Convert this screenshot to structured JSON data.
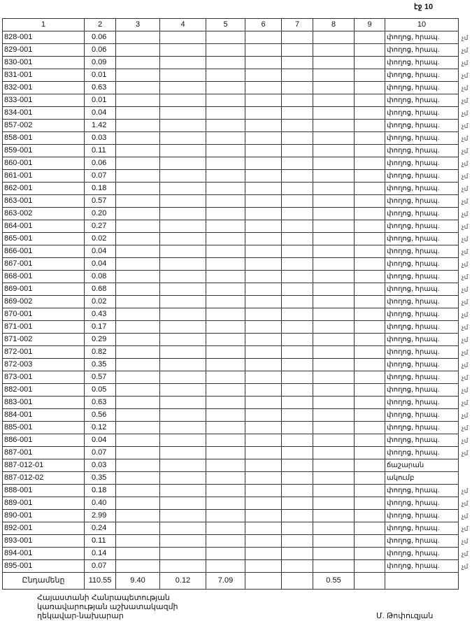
{
  "page_label": "էջ 10",
  "headers": [
    "1",
    "2",
    "3",
    "4",
    "5",
    "6",
    "7",
    "8",
    "9",
    "10"
  ],
  "side_mark": "չմ",
  "rows": [
    [
      "828-001",
      "0.06",
      "փողոց, հրապ."
    ],
    [
      "829-001",
      "0.06",
      "փողոց, հրապ."
    ],
    [
      "830-001",
      "0.09",
      "փողոց, հրապ."
    ],
    [
      "831-001",
      "0.01",
      "փողոց, հրապ."
    ],
    [
      "832-001",
      "0.63",
      "փողոց, հրապ."
    ],
    [
      "833-001",
      "0.01",
      "փողոց, հրապ."
    ],
    [
      "834-001",
      "0.04",
      "փողոց, հրապ."
    ],
    [
      "857-002",
      "1.42",
      "փողոց, հրապ."
    ],
    [
      "858-001",
      "0.03",
      "փողոց, հրապ."
    ],
    [
      "859-001",
      "0.11",
      "փողոց, հրապ."
    ],
    [
      "860-001",
      "0.06",
      "փողոց, հրապ."
    ],
    [
      "861-001",
      "0.07",
      "փողոց, հրապ."
    ],
    [
      "862-001",
      "0.18",
      "փողոց, հրապ."
    ],
    [
      "863-001",
      "0.57",
      "փողոց, հրապ."
    ],
    [
      "863-002",
      "0.20",
      "փողոց, հրապ."
    ],
    [
      "864-001",
      "0.27",
      "փողոց, հրապ."
    ],
    [
      "865-001",
      "0.02",
      "փողոց, հրապ."
    ],
    [
      "866-001",
      "0.04",
      "փողոց, հրապ."
    ],
    [
      "867-001",
      "0.04",
      "փողոց, հրապ."
    ],
    [
      "868-001",
      "0.08",
      "փողոց, հրապ."
    ],
    [
      "869-001",
      "0.68",
      "փողոց, հրապ."
    ],
    [
      "869-002",
      "0.02",
      "փողոց, հրապ."
    ],
    [
      "870-001",
      "0.43",
      "փողոց, հրապ."
    ],
    [
      "871-001",
      "0.17",
      "փողոց, հրապ."
    ],
    [
      "871-002",
      "0.29",
      "փողոց, հրապ."
    ],
    [
      "872-001",
      "0.82",
      "փողոց, հրապ."
    ],
    [
      "872-003",
      "0.35",
      "փողոց, հրապ."
    ],
    [
      "873-001",
      "0.57",
      "փողոց, հրապ."
    ],
    [
      "882-001",
      "0.05",
      "փողոց, հրապ."
    ],
    [
      "883-001",
      "0.63",
      "փողոց, հրապ."
    ],
    [
      "884-001",
      "0.56",
      "փողոց, հրապ."
    ],
    [
      "885-001",
      "0.12",
      "փողոց, հրապ."
    ],
    [
      "886-001",
      "0.04",
      "փողոց, հրապ."
    ],
    [
      "887-001",
      "0.07",
      "փողոց, հրապ."
    ],
    [
      "887-012-01",
      "0.03",
      "ճաշարան"
    ],
    [
      "887-012-02",
      "0.35",
      "ակումբ"
    ],
    [
      "888-001",
      "0.18",
      "փողոց, հրապ."
    ],
    [
      "889-001",
      "0.40",
      "փողոց, հրապ."
    ],
    [
      "890-001",
      "2.99",
      "փողոց, հրապ."
    ],
    [
      "892-001",
      "0.24",
      "փողոց, հրապ."
    ],
    [
      "893-001",
      "0.11",
      "փողոց, հրապ."
    ],
    [
      "894-001",
      "0.14",
      "փողոց, հրապ."
    ],
    [
      "895-001",
      "0.07",
      "փողոց, հրապ."
    ]
  ],
  "total": [
    "Ընդամենը",
    "110.55",
    "9.40",
    "0.12",
    "7.09",
    "",
    "",
    "0.55",
    "",
    ""
  ],
  "footer": {
    "line1": "Հայաստանի Հանրապետության",
    "line2": "կառավարության աշխատակազմի",
    "line3": "ղեկավար-նախարար",
    "signature": "Մ. Թոփուզյան"
  }
}
